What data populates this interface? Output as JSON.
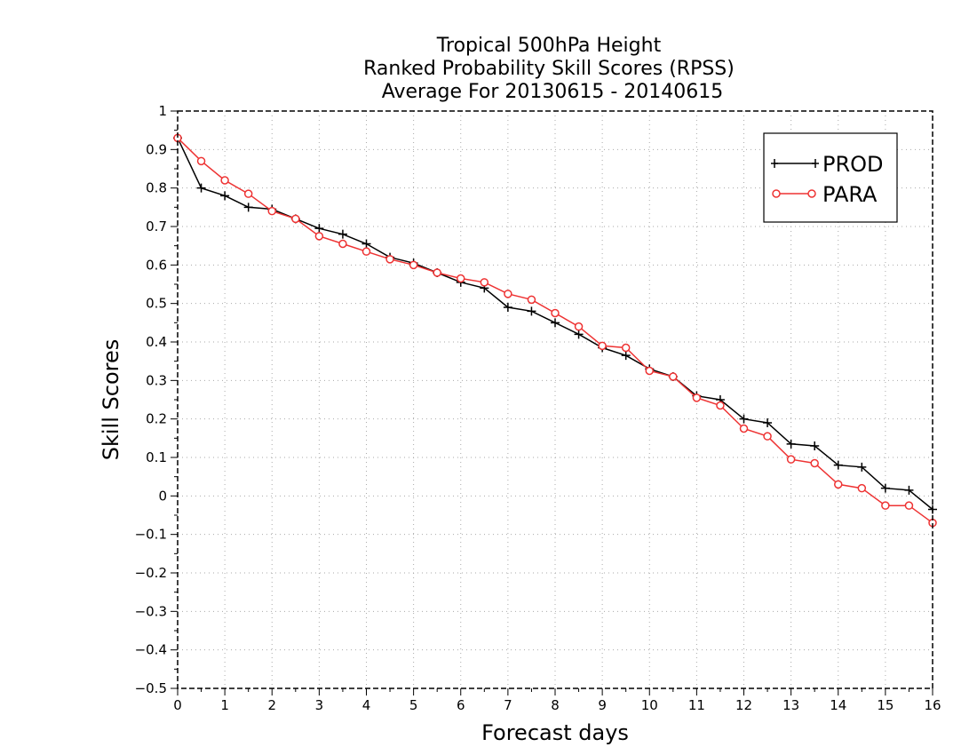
{
  "chart_data": {
    "type": "line",
    "title": [
      "Tropical 500hPa Height",
      "Ranked Probability Skill Scores (RPSS)",
      "Average For 20130615 - 20140615"
    ],
    "xlabel": "Forecast days",
    "ylabel": "Skill Scores",
    "xlim": [
      0,
      16
    ],
    "ylim": [
      -0.5,
      1
    ],
    "xticks": [
      0,
      1,
      2,
      3,
      4,
      5,
      6,
      7,
      8,
      9,
      10,
      11,
      12,
      13,
      14,
      15,
      16
    ],
    "xtick_labels": [
      "0",
      "1",
      "2",
      "3",
      "4",
      "5",
      "6",
      "7",
      "8",
      "9",
      "10",
      "11",
      "12",
      "13",
      "14",
      "15",
      "16"
    ],
    "yticks": [
      -0.5,
      -0.4,
      -0.3,
      -0.2,
      -0.1,
      0,
      0.1,
      0.2,
      0.3,
      0.4,
      0.5,
      0.6,
      0.7,
      0.8,
      0.9,
      1
    ],
    "ytick_labels": [
      "−0.5",
      "−0.4",
      "−0.3",
      "−0.2",
      "−0.1",
      "0",
      "0.1",
      "0.2",
      "0.3",
      "0.4",
      "0.5",
      "0.6",
      "0.7",
      "0.8",
      "0.9",
      "1"
    ],
    "grid": true,
    "legend_position": "top-right",
    "x": [
      0,
      0.5,
      1,
      1.5,
      2,
      2.5,
      3,
      3.5,
      4,
      4.5,
      5,
      5.5,
      6,
      6.5,
      7,
      7.5,
      8,
      8.5,
      9,
      9.5,
      10,
      10.5,
      11,
      11.5,
      12,
      12.5,
      13,
      13.5,
      14,
      14.5,
      15,
      15.5,
      16
    ],
    "series": [
      {
        "name": "PROD",
        "color": "#000000",
        "marker": "plus",
        "values": [
          0.93,
          0.8,
          0.78,
          0.75,
          0.745,
          0.72,
          0.695,
          0.68,
          0.655,
          0.62,
          0.605,
          0.58,
          0.555,
          0.54,
          0.49,
          0.48,
          0.45,
          0.42,
          0.385,
          0.365,
          0.33,
          0.31,
          0.26,
          0.25,
          0.2,
          0.19,
          0.135,
          0.13,
          0.08,
          0.075,
          0.02,
          0.015,
          -0.035
        ]
      },
      {
        "name": "PARA",
        "color": "#ee3333",
        "marker": "circle",
        "values": [
          0.93,
          0.87,
          0.82,
          0.785,
          0.74,
          0.72,
          0.675,
          0.655,
          0.635,
          0.615,
          0.6,
          0.58,
          0.565,
          0.555,
          0.525,
          0.51,
          0.475,
          0.44,
          0.39,
          0.385,
          0.325,
          0.31,
          0.255,
          0.235,
          0.175,
          0.155,
          0.095,
          0.085,
          0.03,
          0.02,
          -0.025,
          -0.025,
          -0.07
        ]
      }
    ]
  }
}
